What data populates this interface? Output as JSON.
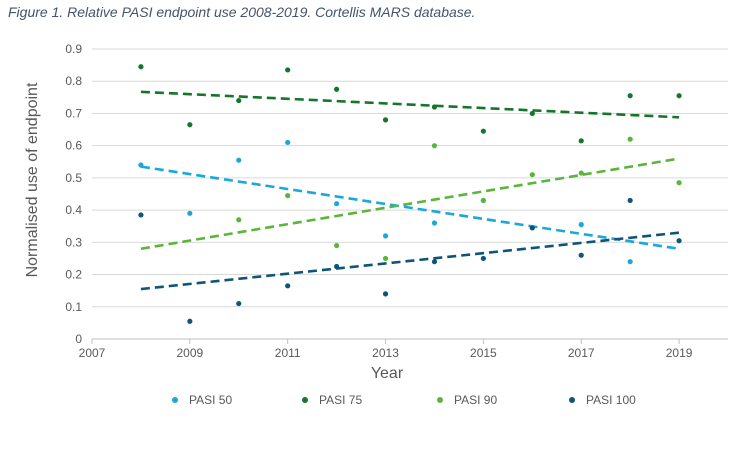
{
  "caption": "Figure 1. Relative PASI endpoint use 2008-2019. Cortellis MARS database.",
  "chart_data": {
    "type": "scatter",
    "title": "",
    "xlabel": "Year",
    "ylabel": "Normalised use of endpoint",
    "xlim": [
      2007,
      2020
    ],
    "ylim": [
      0,
      0.9
    ],
    "x_ticks": [
      "2007",
      "2009",
      "2011",
      "2013",
      "2015",
      "2017",
      "2019"
    ],
    "y_ticks": [
      "0",
      "0.1",
      "0.2",
      "0.3",
      "0.4",
      "0.5",
      "0.6",
      "0.7",
      "0.8",
      "0.9"
    ],
    "grid": "horizontal",
    "legend_position": "bottom",
    "x": [
      2008,
      2009,
      2010,
      2011,
      2012,
      2013,
      2014,
      2015,
      2016,
      2017,
      2018,
      2019
    ],
    "series": [
      {
        "name": "PASI 50",
        "color": "#1aa8dc",
        "values": [
          0.54,
          0.39,
          0.555,
          0.61,
          0.42,
          0.32,
          0.36,
          0.43,
          0.345,
          0.355,
          0.24,
          null
        ],
        "trend": [
          0.535,
          0.28
        ]
      },
      {
        "name": "PASI 75",
        "color": "#16752a",
        "values": [
          0.845,
          0.665,
          0.74,
          0.835,
          0.775,
          0.68,
          0.72,
          0.645,
          0.7,
          0.615,
          0.755,
          0.755
        ],
        "trend": [
          0.767,
          0.688
        ]
      },
      {
        "name": "PASI 90",
        "color": "#5ab53a",
        "values": [
          null,
          null,
          0.37,
          0.445,
          0.29,
          0.25,
          0.6,
          0.43,
          0.51,
          0.515,
          0.62,
          0.485
        ],
        "trend": [
          0.28,
          0.56
        ]
      },
      {
        "name": "PASI 100",
        "color": "#0f5479",
        "values": [
          0.385,
          0.055,
          0.11,
          0.165,
          0.225,
          0.14,
          0.24,
          0.25,
          0.345,
          0.26,
          0.43,
          0.305
        ],
        "trend": [
          0.155,
          0.33
        ]
      }
    ]
  }
}
